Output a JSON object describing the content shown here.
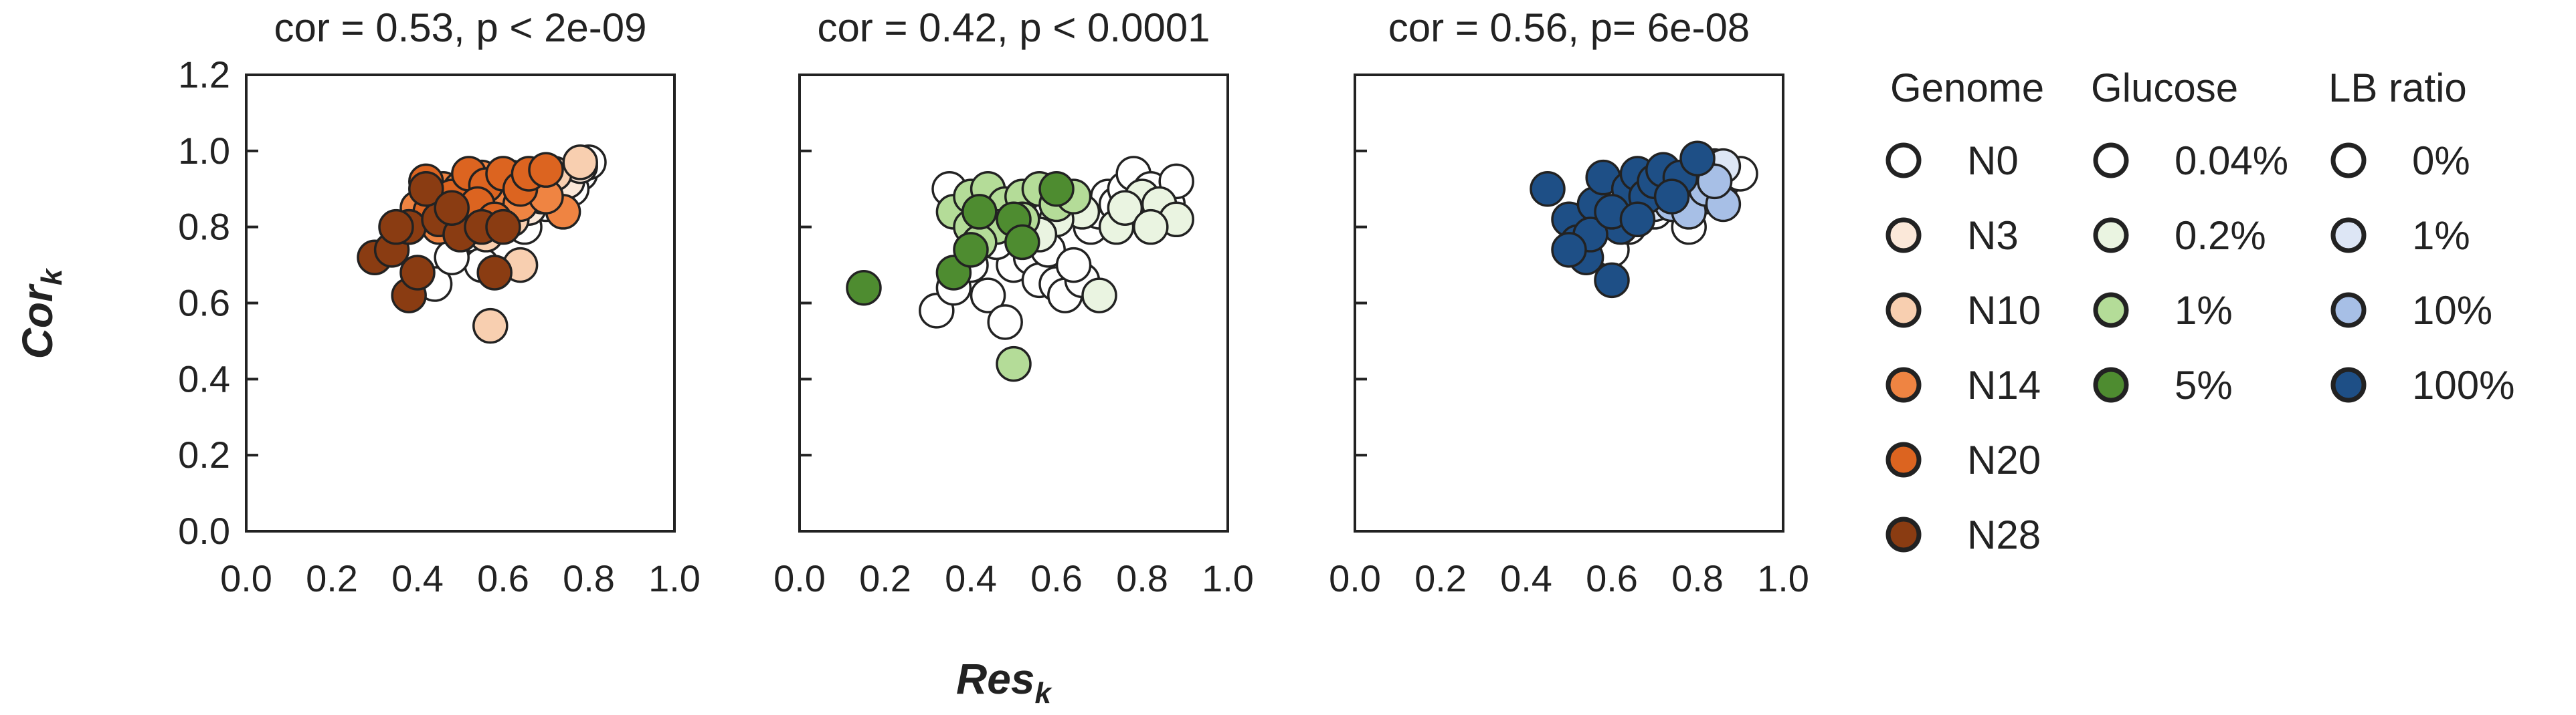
{
  "yaxis_label": {
    "main": "Cor",
    "sub": "k"
  },
  "xaxis_label": {
    "main": "Res",
    "sub": "k"
  },
  "chart_data": [
    {
      "type": "scatter",
      "title": "cor = 0.53, p < 2e-09",
      "xlim": [
        0,
        1
      ],
      "ylim": [
        0,
        1.2
      ],
      "xticks": [
        "0.0",
        "0.2",
        "0.4",
        "0.6",
        "0.8",
        "1.0"
      ],
      "yticks": [
        "0.0",
        "0.2",
        "0.4",
        "0.6",
        "0.8",
        "1.0",
        "1.2"
      ],
      "series": [
        {
          "name": "N0",
          "color": "#ffffff",
          "points": [
            [
              0.44,
              0.65
            ],
            [
              0.52,
              0.78
            ],
            [
              0.6,
              0.84
            ],
            [
              0.68,
              0.88
            ],
            [
              0.72,
              0.92
            ],
            [
              0.78,
              0.94
            ],
            [
              0.8,
              0.97
            ],
            [
              0.65,
              0.8
            ],
            [
              0.55,
              0.7
            ],
            [
              0.48,
              0.72
            ],
            [
              0.7,
              0.86
            ],
            [
              0.76,
              0.9
            ]
          ]
        },
        {
          "name": "N3",
          "color": "#fbe8d9",
          "points": [
            [
              0.5,
              0.86
            ],
            [
              0.62,
              0.9
            ],
            [
              0.7,
              0.9
            ],
            [
              0.75,
              0.92
            ],
            [
              0.58,
              0.82
            ],
            [
              0.66,
              0.85
            ],
            [
              0.78,
              0.96
            ],
            [
              0.46,
              0.82
            ]
          ]
        },
        {
          "name": "N10",
          "color": "#f8cfb0",
          "points": [
            [
              0.57,
              0.54
            ],
            [
              0.64,
              0.7
            ],
            [
              0.66,
              0.9
            ],
            [
              0.72,
              0.94
            ],
            [
              0.78,
              0.97
            ],
            [
              0.56,
              0.78
            ],
            [
              0.62,
              0.82
            ],
            [
              0.69,
              0.88
            ]
          ]
        },
        {
          "name": "N14",
          "color": "#ef8442",
          "points": [
            [
              0.4,
              0.85
            ],
            [
              0.46,
              0.9
            ],
            [
              0.5,
              0.9
            ],
            [
              0.55,
              0.93
            ],
            [
              0.62,
              0.93
            ],
            [
              0.68,
              0.92
            ],
            [
              0.74,
              0.84
            ],
            [
              0.58,
              0.86
            ],
            [
              0.45,
              0.8
            ],
            [
              0.52,
              0.84
            ],
            [
              0.64,
              0.86
            ],
            [
              0.7,
              0.88
            ]
          ]
        },
        {
          "name": "N20",
          "color": "#dc6420",
          "points": [
            [
              0.42,
              0.92
            ],
            [
              0.48,
              0.88
            ],
            [
              0.52,
              0.94
            ],
            [
              0.56,
              0.91
            ],
            [
              0.6,
              0.94
            ],
            [
              0.64,
              0.9
            ],
            [
              0.66,
              0.94
            ],
            [
              0.7,
              0.95
            ],
            [
              0.43,
              0.84
            ],
            [
              0.54,
              0.86
            ],
            [
              0.58,
              0.82
            ],
            [
              0.38,
              0.8
            ]
          ]
        },
        {
          "name": "N28",
          "color": "#8a3c12",
          "points": [
            [
              0.3,
              0.72
            ],
            [
              0.34,
              0.74
            ],
            [
              0.38,
              0.62
            ],
            [
              0.4,
              0.68
            ],
            [
              0.38,
              0.8
            ],
            [
              0.45,
              0.82
            ],
            [
              0.5,
              0.78
            ],
            [
              0.55,
              0.8
            ],
            [
              0.58,
              0.68
            ],
            [
              0.42,
              0.9
            ],
            [
              0.48,
              0.85
            ],
            [
              0.35,
              0.8
            ],
            [
              0.6,
              0.8
            ]
          ]
        }
      ]
    },
    {
      "type": "scatter",
      "title": "cor = 0.42, p < 0.0001",
      "xlim": [
        0,
        1
      ],
      "ylim": [
        0,
        1.2
      ],
      "xticks": [
        "0.0",
        "0.2",
        "0.4",
        "0.6",
        "0.8",
        "1.0"
      ],
      "yticks": [],
      "series": [
        {
          "name": "0.04%",
          "color": "#ffffff",
          "points": [
            [
              0.32,
              0.58
            ],
            [
              0.36,
              0.64
            ],
            [
              0.4,
              0.7
            ],
            [
              0.44,
              0.62
            ],
            [
              0.48,
              0.55
            ],
            [
              0.5,
              0.7
            ],
            [
              0.54,
              0.72
            ],
            [
              0.56,
              0.66
            ],
            [
              0.6,
              0.65
            ],
            [
              0.62,
              0.62
            ],
            [
              0.66,
              0.66
            ],
            [
              0.68,
              0.8
            ],
            [
              0.7,
              0.84
            ],
            [
              0.72,
              0.88
            ],
            [
              0.74,
              0.86
            ],
            [
              0.76,
              0.9
            ],
            [
              0.78,
              0.94
            ],
            [
              0.82,
              0.9
            ],
            [
              0.86,
              0.86
            ],
            [
              0.88,
              0.92
            ],
            [
              0.58,
              0.74
            ],
            [
              0.64,
              0.7
            ],
            [
              0.35,
              0.9
            ],
            [
              0.46,
              0.76
            ],
            [
              0.8,
              0.86
            ]
          ]
        },
        {
          "name": "0.2%",
          "color": "#eaf4e1",
          "points": [
            [
              0.7,
              0.62
            ],
            [
              0.74,
              0.8
            ],
            [
              0.8,
              0.88
            ],
            [
              0.84,
              0.86
            ],
            [
              0.88,
              0.82
            ],
            [
              0.66,
              0.84
            ],
            [
              0.6,
              0.82
            ],
            [
              0.56,
              0.78
            ],
            [
              0.76,
              0.85
            ],
            [
              0.82,
              0.8
            ]
          ]
        },
        {
          "name": "1%",
          "color": "#b4dc98",
          "points": [
            [
              0.5,
              0.44
            ],
            [
              0.36,
              0.84
            ],
            [
              0.4,
              0.88
            ],
            [
              0.44,
              0.9
            ],
            [
              0.48,
              0.86
            ],
            [
              0.52,
              0.88
            ],
            [
              0.56,
              0.9
            ],
            [
              0.6,
              0.86
            ],
            [
              0.64,
              0.88
            ],
            [
              0.46,
              0.8
            ],
            [
              0.52,
              0.82
            ],
            [
              0.4,
              0.8
            ],
            [
              0.42,
              0.76
            ]
          ]
        },
        {
          "name": "5%",
          "color": "#4e8c30",
          "points": [
            [
              0.15,
              0.64
            ],
            [
              0.36,
              0.68
            ],
            [
              0.42,
              0.84
            ],
            [
              0.5,
              0.82
            ],
            [
              0.6,
              0.9
            ],
            [
              0.52,
              0.76
            ],
            [
              0.4,
              0.74
            ]
          ]
        }
      ]
    },
    {
      "type": "scatter",
      "title": "cor = 0.56, p= 6e-08",
      "xlim": [
        0,
        1
      ],
      "ylim": [
        0,
        1.2
      ],
      "xticks": [
        "0.0",
        "0.2",
        "0.4",
        "0.6",
        "0.8",
        "1.0"
      ],
      "yticks": [],
      "series": [
        {
          "name": "0%",
          "color": "#ffffff",
          "points": [
            [
              0.6,
              0.74
            ],
            [
              0.66,
              0.82
            ],
            [
              0.7,
              0.84
            ],
            [
              0.74,
              0.86
            ],
            [
              0.78,
              0.8
            ],
            [
              0.82,
              0.88
            ],
            [
              0.86,
              0.92
            ],
            [
              0.9,
              0.94
            ],
            [
              0.84,
              0.96
            ],
            [
              0.76,
              0.9
            ],
            [
              0.68,
              0.88
            ],
            [
              0.64,
              0.8
            ]
          ]
        },
        {
          "name": "1%",
          "color": "#dde6f5",
          "points": [
            [
              0.72,
              0.92
            ],
            [
              0.8,
              0.94
            ],
            [
              0.86,
              0.96
            ],
            [
              0.76,
              0.88
            ],
            [
              0.82,
              0.9
            ],
            [
              0.7,
              0.86
            ]
          ]
        },
        {
          "name": "10%",
          "color": "#a7bfe6",
          "points": [
            [
              0.74,
              0.86
            ],
            [
              0.78,
              0.84
            ],
            [
              0.82,
              0.9
            ],
            [
              0.86,
              0.86
            ],
            [
              0.8,
              0.96
            ],
            [
              0.84,
              0.92
            ],
            [
              0.72,
              0.9
            ]
          ]
        },
        {
          "name": "100%",
          "color": "#1e4f86",
          "points": [
            [
              0.45,
              0.9
            ],
            [
              0.5,
              0.82
            ],
            [
              0.52,
              0.76
            ],
            [
              0.54,
              0.72
            ],
            [
              0.56,
              0.86
            ],
            [
              0.58,
              0.93
            ],
            [
              0.6,
              0.66
            ],
            [
              0.62,
              0.8
            ],
            [
              0.64,
              0.9
            ],
            [
              0.66,
              0.94
            ],
            [
              0.68,
              0.88
            ],
            [
              0.7,
              0.92
            ],
            [
              0.72,
              0.95
            ],
            [
              0.76,
              0.93
            ],
            [
              0.8,
              0.98
            ],
            [
              0.55,
              0.78
            ],
            [
              0.6,
              0.84
            ],
            [
              0.74,
              0.88
            ],
            [
              0.5,
              0.74
            ],
            [
              0.66,
              0.82
            ]
          ]
        }
      ]
    }
  ],
  "legend": {
    "groups": [
      {
        "title": "Genome",
        "entries": [
          {
            "label": "N0",
            "color": "#ffffff"
          },
          {
            "label": "N3",
            "color": "#fbe8d9"
          },
          {
            "label": "N10",
            "color": "#f8cfb0"
          },
          {
            "label": "N14",
            "color": "#ef8442"
          },
          {
            "label": "N20",
            "color": "#dc6420"
          },
          {
            "label": "N28",
            "color": "#8a3c12"
          }
        ]
      },
      {
        "title": "Glucose",
        "entries": [
          {
            "label": "0.04%",
            "color": "#ffffff"
          },
          {
            "label": "0.2%",
            "color": "#eaf4e1"
          },
          {
            "label": "1%",
            "color": "#b4dc98"
          },
          {
            "label": "5%",
            "color": "#4e8c30"
          }
        ]
      },
      {
        "title": "LB ratio",
        "entries": [
          {
            "label": "0%",
            "color": "#ffffff"
          },
          {
            "label": "1%",
            "color": "#dde6f5"
          },
          {
            "label": "10%",
            "color": "#a7bfe6"
          },
          {
            "label": "100%",
            "color": "#1e4f86"
          }
        ]
      }
    ]
  }
}
